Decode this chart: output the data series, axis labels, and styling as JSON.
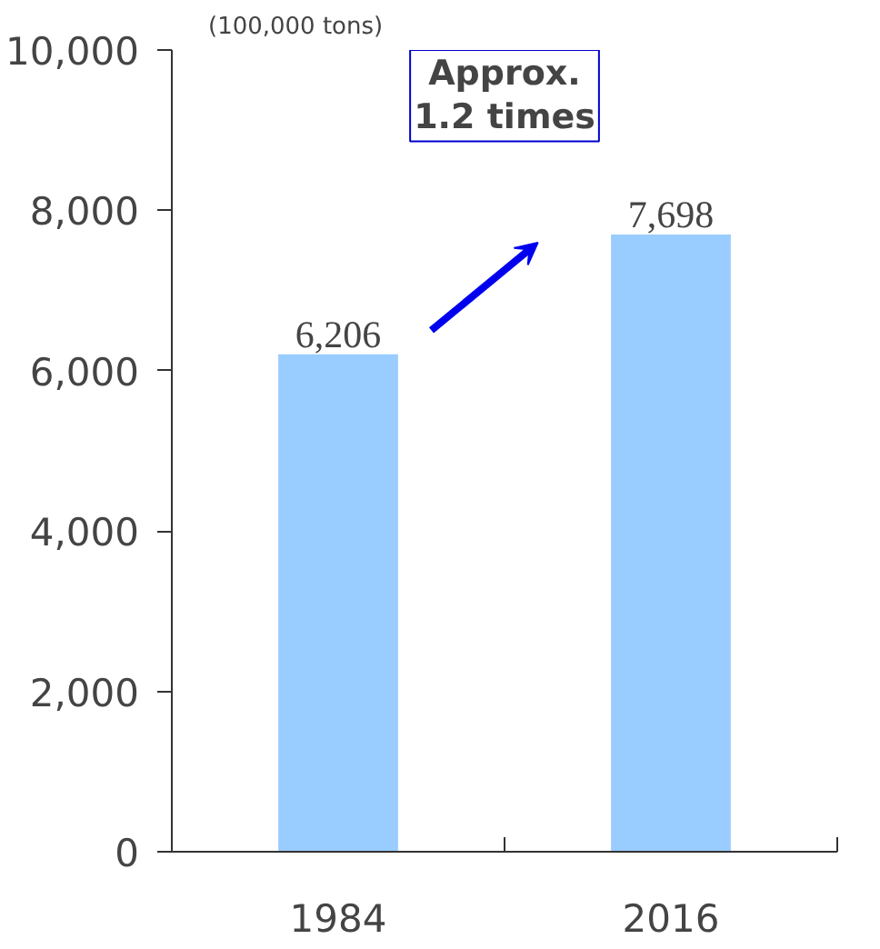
{
  "chart_data": {
    "type": "bar",
    "ylabel": "(100,000 tons)",
    "categories": [
      "1984",
      "2016"
    ],
    "values": [
      6206,
      7698
    ],
    "color": "#99ccff",
    "value_labels": [
      "6,206",
      "7,698"
    ],
    "ylim": [
      0,
      10000
    ],
    "yticks": [
      {
        "value": 0,
        "label": "0"
      },
      {
        "value": 2000,
        "label": "2,000"
      },
      {
        "value": 4000,
        "label": "4,000"
      },
      {
        "value": 6000,
        "label": "6,000"
      },
      {
        "value": 8000,
        "label": "8,000"
      },
      {
        "value": 10000,
        "label": "10,000"
      }
    ],
    "annotations": [
      "Approx.\n1.2 times"
    ],
    "grid": false
  }
}
